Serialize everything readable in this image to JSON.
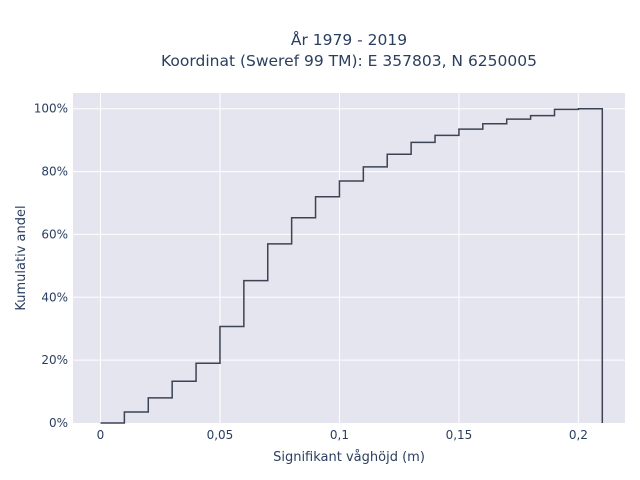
{
  "chart_data": {
    "type": "line",
    "line_shape": "step",
    "title_lines": [
      "År 1979 - 2019",
      "Koordinat (Sweref 99 TM): E 357803, N 6250005"
    ],
    "xlabel": "Signifikant våghöjd (m)",
    "ylabel": "Kumulativ andel",
    "xlim": [
      -0.0115,
      0.2195
    ],
    "ylim": [
      0,
      1.05
    ],
    "x_ticks": [
      0,
      0.05,
      0.1,
      0.15,
      0.2
    ],
    "x_tick_labels": [
      "0",
      "0,05",
      "0,1",
      "0,15",
      "0,2"
    ],
    "y_ticks": [
      0,
      0.2,
      0.4,
      0.6,
      0.8,
      1.0
    ],
    "y_tick_labels": [
      "0%",
      "20%",
      "40%",
      "60%",
      "80%",
      "100%"
    ],
    "grid": true,
    "colors": {
      "plot_background": "#e5e5ef",
      "grid": "#ffffff",
      "line": "#3b4354",
      "text": "#2a3f5f"
    },
    "series": [
      {
        "x": [
          0,
          0.01,
          0.02,
          0.03,
          0.04,
          0.05,
          0.06,
          0.07,
          0.08,
          0.09,
          0.1,
          0.11,
          0.12,
          0.13,
          0.14,
          0.15,
          0.16,
          0.17,
          0.18,
          0.19,
          0.2,
          0.21
        ],
        "y": [
          0.0,
          0.035,
          0.08,
          0.133,
          0.19,
          0.307,
          0.453,
          0.57,
          0.653,
          0.72,
          0.77,
          0.815,
          0.855,
          0.893,
          0.915,
          0.935,
          0.952,
          0.967,
          0.978,
          0.998,
          1.0,
          0.0
        ]
      }
    ]
  }
}
